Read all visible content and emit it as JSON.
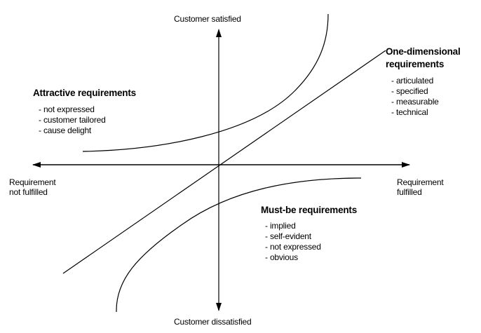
{
  "axes": {
    "top": "Customer satisfied",
    "bottom": "Customer dissatisfied",
    "left": [
      "Requirement",
      "not fulfilled"
    ],
    "right": [
      "Requirement",
      "fulfilled"
    ]
  },
  "categories": {
    "attractive": {
      "title": "Attractive requirements",
      "items": [
        "not expressed",
        "customer tailored",
        "cause delight"
      ]
    },
    "one_dimensional": {
      "title": [
        "One-dimensional",
        "requirements"
      ],
      "items": [
        "articulated",
        "specified",
        "measurable",
        "technical"
      ]
    },
    "must_be": {
      "title": "Must-be requirements",
      "items": [
        "implied",
        "self-evident",
        "not expressed",
        "obvious"
      ]
    }
  }
}
